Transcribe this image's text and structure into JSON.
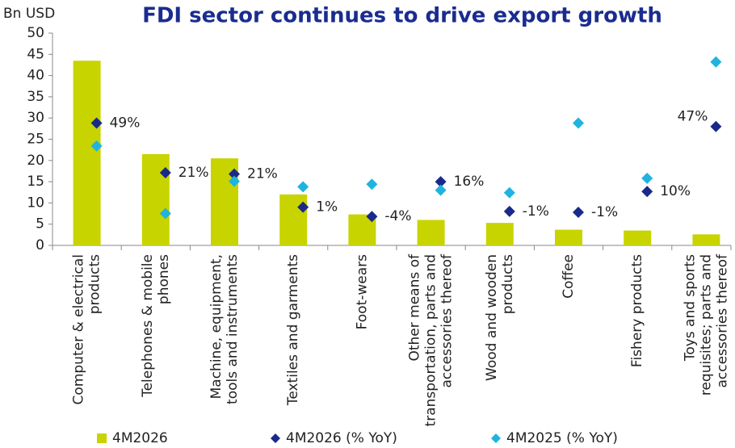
{
  "chart_data": {
    "type": "bar",
    "title": "FDI sector continues to drive export growth",
    "y_axis_label": "Bn USD",
    "categories": [
      "Computer & electrical\nproducts",
      "Telephones & mobile\nphones",
      "Machine, equipment,\ntools and instruments",
      "Textiles and garments",
      "Foot-wears",
      "Other means of\ntransportation, parts and\naccessories thereof",
      "Wood and wooden\nproducts",
      "Coffee",
      "Fishery products",
      "Toys and sports\nrequisites; parts and\naccessories thereof"
    ],
    "series": [
      {
        "name": "4M2026",
        "color": "#c8d400",
        "values": [
          43.5,
          21.5,
          20.5,
          12,
          7.3,
          6,
          5.3,
          3.7,
          3.5,
          2.6
        ]
      },
      {
        "name": "4M2026 (% YoY)",
        "color": "#1a2a8a",
        "marker": "diamond",
        "values": [
          28.8,
          17.1,
          16.8,
          9,
          6.8,
          15,
          8,
          7.8,
          12.7,
          28
        ]
      },
      {
        "name": "4M2025 (% YoY)",
        "color": "#1fb3e0",
        "marker": "diamond",
        "values": [
          23.4,
          7.5,
          15.1,
          13.8,
          14.4,
          13,
          12.4,
          28.8,
          15.8,
          43.2
        ]
      }
    ],
    "annotations": [
      "49%",
      "21%",
      "21%",
      "1%",
      "-4%",
      "16%",
      "-1%",
      "-1%",
      "10%",
      "47%"
    ],
    "ylim": [
      0,
      50
    ],
    "yticks": [
      0,
      5,
      10,
      15,
      20,
      25,
      30,
      35,
      40,
      45,
      50
    ]
  }
}
